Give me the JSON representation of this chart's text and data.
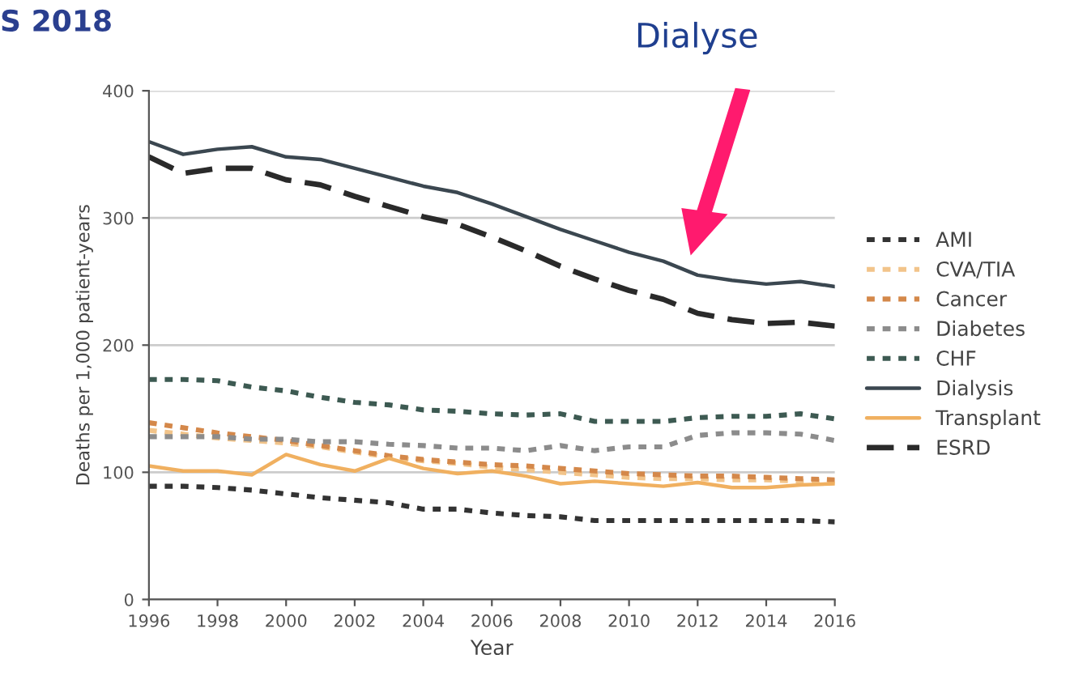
{
  "chart_data": {
    "type": "line",
    "title": "S 2018",
    "xlabel": "Year",
    "ylabel": "Deaths per 1,000 patient-years",
    "x": [
      1996,
      1997,
      1998,
      1999,
      2000,
      2001,
      2002,
      2003,
      2004,
      2005,
      2006,
      2007,
      2008,
      2009,
      2010,
      2011,
      2012,
      2013,
      2014,
      2015,
      2016
    ],
    "series": [
      {
        "name": "AMI",
        "color": "#333333",
        "line_style": "dotted",
        "values": [
          89,
          89,
          88,
          86,
          83,
          80,
          78,
          76,
          71,
          71,
          68,
          66,
          65,
          62,
          62,
          62,
          62,
          62,
          62,
          62,
          61
        ]
      },
      {
        "name": "CVA/TIA",
        "color": "#f2c48a",
        "line_style": "dotted",
        "values": [
          133,
          130,
          127,
          125,
          123,
          120,
          116,
          112,
          109,
          107,
          104,
          102,
          100,
          98,
          96,
          95,
          95,
          94,
          94,
          93,
          93
        ]
      },
      {
        "name": "Cancer",
        "color": "#d4884a",
        "line_style": "dotted",
        "values": [
          139,
          135,
          131,
          128,
          125,
          121,
          117,
          113,
          110,
          108,
          106,
          105,
          103,
          101,
          99,
          98,
          97,
          97,
          96,
          95,
          94
        ]
      },
      {
        "name": "Diabetes",
        "color": "#8c8c8c",
        "line_style": "dotted",
        "values": [
          128,
          128,
          128,
          126,
          126,
          124,
          124,
          122,
          121,
          119,
          119,
          117,
          121,
          117,
          120,
          120,
          129,
          131,
          131,
          130,
          125
        ]
      },
      {
        "name": "CHF",
        "color": "#3d5a52",
        "line_style": "dotted",
        "values": [
          173,
          173,
          172,
          167,
          164,
          159,
          155,
          153,
          149,
          148,
          146,
          145,
          146,
          140,
          140,
          140,
          143,
          144,
          144,
          146,
          142
        ]
      },
      {
        "name": "Dialysis",
        "color": "#3b4750",
        "line_style": "solid",
        "values": [
          360,
          350,
          354,
          356,
          348,
          346,
          339,
          332,
          325,
          320,
          311,
          301,
          291,
          282,
          273,
          266,
          255,
          251,
          248,
          250,
          246
        ]
      },
      {
        "name": "Transplant",
        "color": "#f0b060",
        "line_style": "solid",
        "values": [
          105,
          101,
          101,
          98,
          114,
          106,
          101,
          111,
          103,
          99,
          101,
          97,
          91,
          93,
          91,
          89,
          92,
          88,
          88,
          90,
          91
        ]
      },
      {
        "name": "ESRD",
        "color": "#2a2a2a",
        "line_style": "dashed",
        "values": [
          348,
          335,
          339,
          339,
          330,
          326,
          317,
          309,
          301,
          295,
          285,
          274,
          262,
          252,
          243,
          236,
          225,
          220,
          217,
          218,
          215
        ]
      }
    ],
    "xlim": [
      1996,
      2016
    ],
    "xticks": [
      1996,
      1998,
      2000,
      2002,
      2004,
      2006,
      2008,
      2010,
      2012,
      2014,
      2016
    ],
    "ylim": [
      0,
      400
    ],
    "yticks": [
      0,
      100,
      200,
      300,
      400
    ],
    "annotations": [
      "Dialyse"
    ],
    "grid": "y",
    "legend": "right",
    "marker": "none"
  }
}
